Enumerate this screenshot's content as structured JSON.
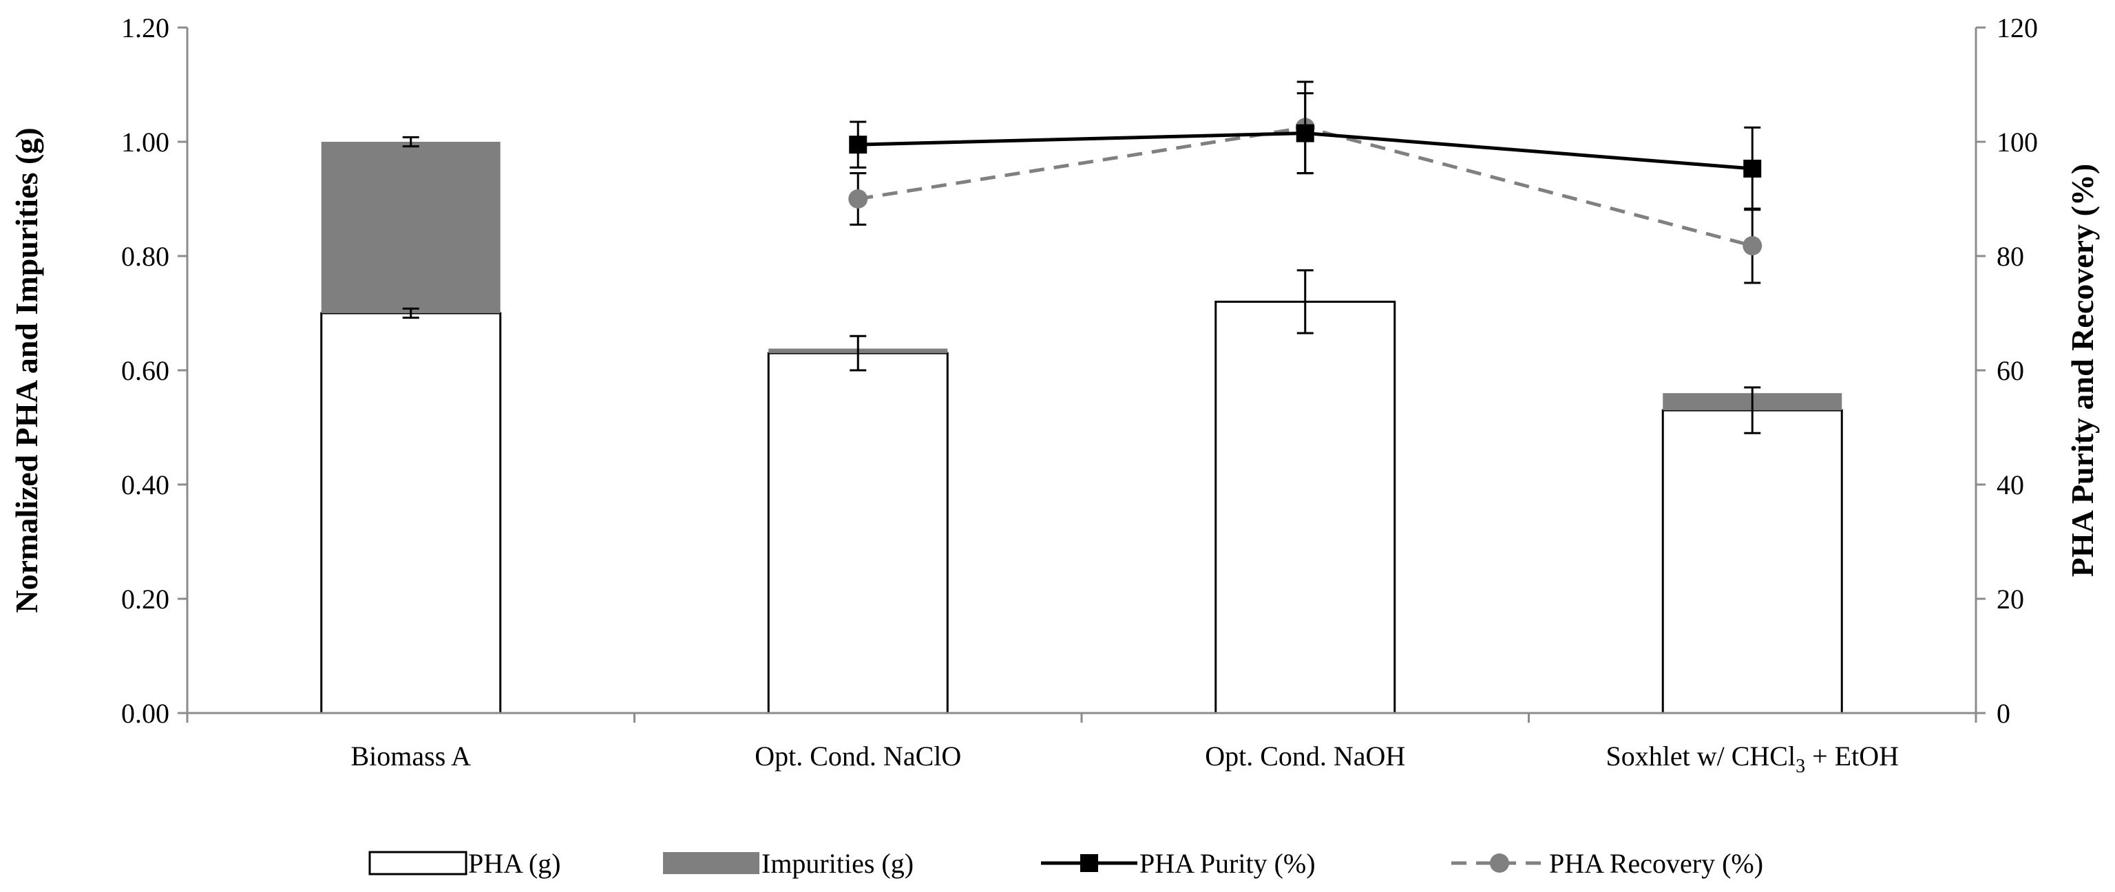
{
  "chart_data": {
    "type": "bar",
    "categories": [
      "Biomass A",
      "Opt. Cond. NaClO",
      "Opt. Cond. NaOH",
      "Soxhlet w/ CHCl3 + EtOH"
    ],
    "category_labels": [
      {
        "text": "Biomass A"
      },
      {
        "text": "Opt. Cond. NaClO"
      },
      {
        "text": "Opt. Cond. NaOH"
      },
      {
        "pre": "Soxhlet w/ CHCl",
        "sub": "3",
        "post": " + EtOH"
      }
    ],
    "left_axis": {
      "title": "Normalized PHA  and Impurities (g)",
      "ylim": [
        0,
        1.2
      ],
      "ticks": [
        "0.00",
        "0.20",
        "0.40",
        "0.60",
        "0.80",
        "1.00",
        "1.20"
      ],
      "tick_values": [
        0,
        0.2,
        0.4,
        0.6,
        0.8,
        1.0,
        1.2
      ]
    },
    "right_axis": {
      "title": "PHA Purity and Recovery (%)",
      "ylim": [
        0,
        120
      ],
      "ticks": [
        "0",
        "20",
        "40",
        "60",
        "80",
        "100",
        "120"
      ],
      "tick_values": [
        0,
        20,
        40,
        60,
        80,
        100,
        120
      ]
    },
    "series": [
      {
        "name": "PHA (g)",
        "kind": "bar",
        "axis": "left",
        "fill": "#ffffff",
        "stroke": "#000000",
        "values": [
          0.7,
          0.63,
          0.72,
          0.53
        ],
        "errors": [
          0.008,
          0.03,
          0.055,
          0.04
        ]
      },
      {
        "name": "Impurities (g)",
        "kind": "bar-stacked",
        "axis": "left",
        "fill": "#7f7f7f",
        "values": [
          0.3,
          0.008,
          0.0,
          0.03
        ],
        "errors": [
          0.008,
          null,
          null,
          null
        ]
      },
      {
        "name": "PHA Purity (%)",
        "kind": "line",
        "axis": "right",
        "color": "#000000",
        "marker": "square",
        "values": [
          null,
          99.5,
          101.5,
          95.3
        ],
        "errors": [
          null,
          4,
          7,
          7.2
        ]
      },
      {
        "name": "PHA Recovery (%)",
        "kind": "line",
        "axis": "right",
        "color": "#808080",
        "marker": "circle",
        "dashed": true,
        "values": [
          null,
          90,
          102.5,
          81.8
        ],
        "errors": [
          null,
          4.5,
          8,
          6.5
        ]
      }
    ],
    "legend": {
      "position": "bottom",
      "items": [
        "PHA (g)",
        "Impurities (g)",
        "PHA Purity (%)",
        "PHA Recovery (%)"
      ]
    }
  }
}
